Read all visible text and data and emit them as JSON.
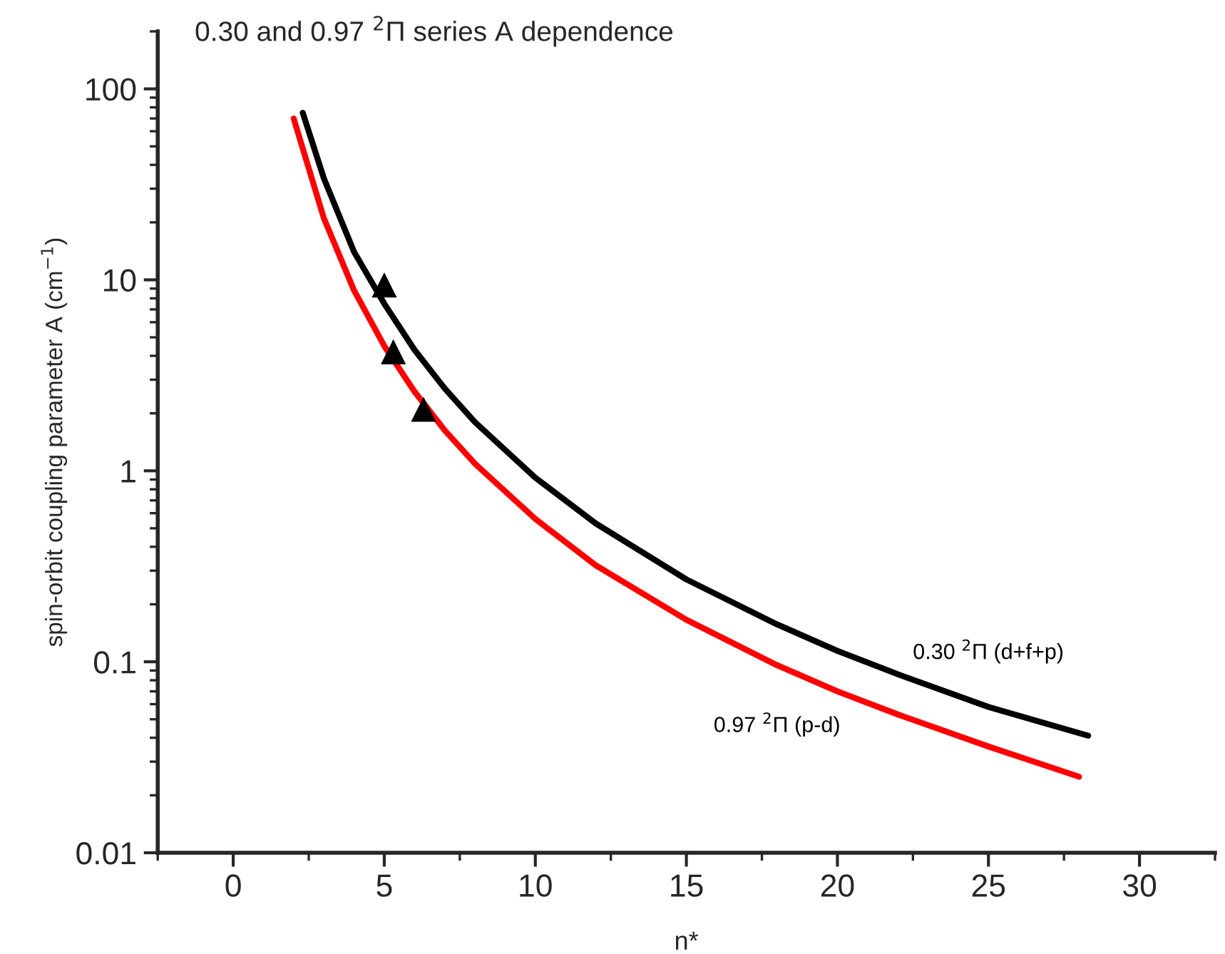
{
  "chart_data": {
    "type": "line",
    "title": "0.30 and 0.97 $^{2}$Π series A dependence",
    "xlabel": "n*",
    "ylabel": "spin-orbit coupling parameter A (cm$^{−1}$)",
    "log": "y",
    "xlim": [
      -2.5,
      32.5
    ],
    "xticks": [
      0,
      5,
      10,
      15,
      20,
      25,
      30
    ],
    "ylim": [
      0.01,
      200
    ],
    "yticks": [
      0.01,
      0.1,
      1,
      10,
      100
    ],
    "grid": false,
    "legend": false,
    "series": [
      {
        "name": "0.30 $^{2}$Π (d+f+p)",
        "color": "#000000",
        "x": [
          2.3,
          3,
          4,
          5,
          6,
          7,
          8,
          10,
          12,
          15,
          18,
          20,
          22,
          25,
          28.3
        ],
        "values": [
          75,
          34,
          14,
          7.5,
          4.3,
          2.7,
          1.8,
          0.92,
          0.53,
          0.27,
          0.157,
          0.114,
          0.086,
          0.058,
          0.041
        ]
      },
      {
        "name": "0.97 $^{2}$Π (p-d)",
        "color": "#ff0000",
        "x": [
          2,
          3,
          4,
          5,
          6,
          7,
          8,
          10,
          12,
          15,
          18,
          20,
          22,
          25,
          28
        ],
        "values": [
          70,
          21,
          8.8,
          4.5,
          2.6,
          1.63,
          1.09,
          0.56,
          0.32,
          0.166,
          0.096,
          0.07,
          0.053,
          0.036,
          0.025
        ]
      },
      {
        "type": "scatter",
        "marker": "triangle",
        "color": "#000000",
        "x": [
          5.0,
          5.3,
          6.3
        ],
        "values": [
          9.4,
          4.2,
          2.1
        ]
      }
    ]
  }
}
